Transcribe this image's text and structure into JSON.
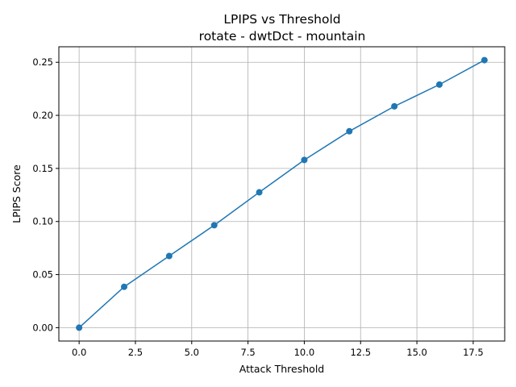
{
  "chart_data": {
    "type": "line",
    "title_line1": "LPIPS vs Threshold",
    "title_line2": "rotate - dwtDct - mountain",
    "xlabel": "Attack Threshold",
    "ylabel": "LPIPS Score",
    "xlim": [
      -0.9,
      18.9
    ],
    "ylim": [
      -0.0126,
      0.2646
    ],
    "x_ticks": [
      0.0,
      2.5,
      5.0,
      7.5,
      10.0,
      12.5,
      15.0,
      17.5
    ],
    "x_tick_labels": [
      "0.0",
      "2.5",
      "5.0",
      "7.5",
      "10.0",
      "12.5",
      "15.0",
      "17.5"
    ],
    "y_ticks": [
      0.0,
      0.05,
      0.1,
      0.15,
      0.2,
      0.25
    ],
    "y_tick_labels": [
      "0.00",
      "0.05",
      "0.10",
      "0.15",
      "0.20",
      "0.25"
    ],
    "grid": true,
    "series": [
      {
        "color": "#1f77b4",
        "marker": "circle",
        "x": [
          0,
          2,
          4,
          6,
          8,
          10,
          12,
          14,
          16,
          18
        ],
        "y": [
          0.0,
          0.0385,
          0.0675,
          0.0965,
          0.1275,
          0.158,
          0.185,
          0.2085,
          0.229,
          0.252
        ]
      }
    ]
  }
}
